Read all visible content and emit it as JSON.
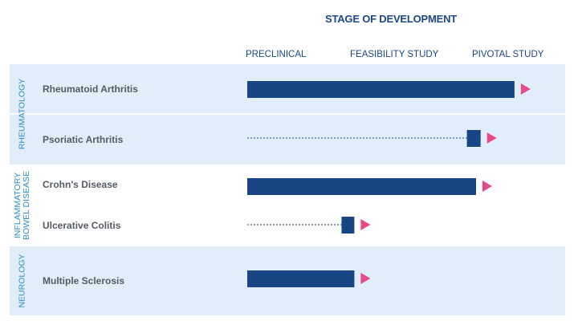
{
  "chart_data": {
    "type": "bar",
    "title": "STAGE OF DEVELOPMENT",
    "stages": [
      "PRECLINICAL",
      "FEASIBILITY STUDY",
      "PIVOTAL STUDY"
    ],
    "xlim": [
      0,
      3
    ],
    "groups": [
      {
        "name": "RHEUMATOLOGY",
        "rows": [
          {
            "label": "Rheumatoid Arthritis",
            "start": 0,
            "end": 2.92
          },
          {
            "label": "Psoriatic Arthritis",
            "start": 2.4,
            "end": 2.55,
            "dashed_lead": true
          }
        ]
      },
      {
        "name": "INFLAMMATORY BOWEL DISEASE",
        "rows": [
          {
            "label": "Crohn's Disease",
            "start": 0,
            "end": 2.5
          },
          {
            "label": "Ulcerative Colitis",
            "start": 1.03,
            "end": 1.17,
            "dashed_lead": true
          }
        ]
      },
      {
        "name": "NEUROLOGY",
        "rows": [
          {
            "label": "Multiple Sclerosis",
            "start": 0,
            "end": 1.17
          }
        ]
      }
    ],
    "colors": {
      "bar": "#1a4585",
      "arrow": "#e84a88",
      "band": "#e1edf9",
      "title": "#1d4788",
      "group_label": "#2f8fc3"
    }
  }
}
